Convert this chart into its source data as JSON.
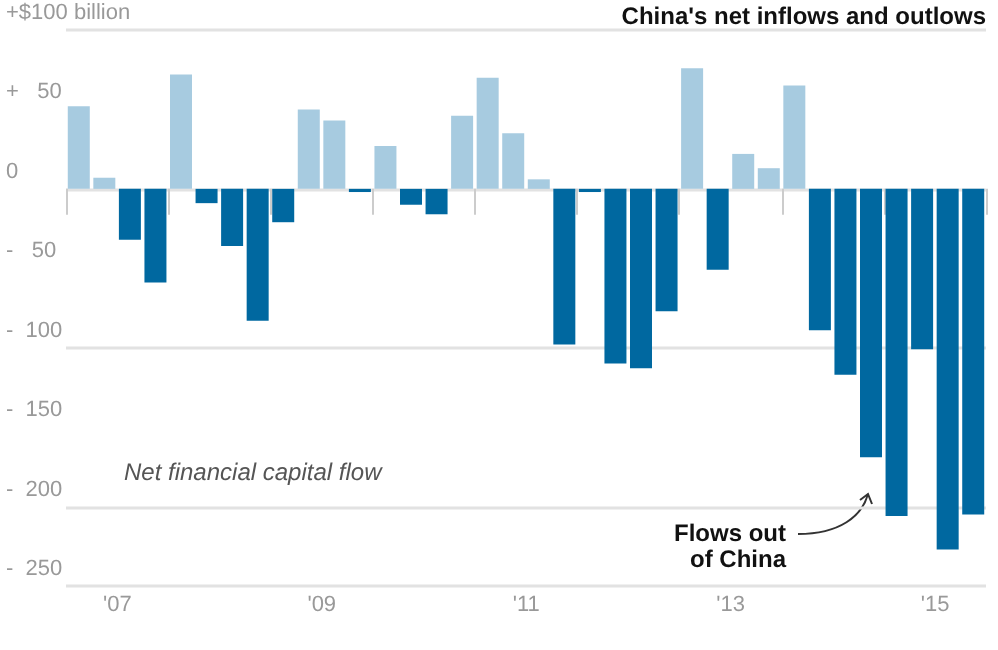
{
  "chart_data": {
    "type": "bar",
    "title": "China's net inflows and outlows",
    "categories": [
      null,
      "'07",
      null,
      null,
      null,
      null,
      null,
      null,
      null,
      "'09",
      null,
      null,
      null,
      null,
      null,
      null,
      null,
      "'11",
      null,
      null,
      null,
      null,
      null,
      null,
      null,
      "'13",
      null,
      null,
      null,
      null,
      null,
      null,
      null,
      "'15",
      null,
      null
    ],
    "values": [
      52,
      7,
      -32,
      -59,
      72,
      -9,
      -36,
      -83,
      -21,
      50,
      43,
      -2,
      27,
      -10,
      -16,
      46,
      70,
      35,
      6,
      -98,
      -2,
      -110,
      -113,
      -77,
      76,
      -51,
      22,
      13,
      65,
      -89,
      -117,
      -169,
      -206,
      -101,
      -227,
      -205
    ],
    "colors": [
      "#a7cbe0",
      "#a7cbe0",
      "#0068a0",
      "#0068a0",
      "#a7cbe0",
      "#0068a0",
      "#0068a0",
      "#0068a0",
      "#0068a0",
      "#a7cbe0",
      "#a7cbe0",
      "#0068a0",
      "#a7cbe0",
      "#0068a0",
      "#0068a0",
      "#a7cbe0",
      "#a7cbe0",
      "#a7cbe0",
      "#a7cbe0",
      "#0068a0",
      "#0068a0",
      "#0068a0",
      "#0068a0",
      "#0068a0",
      "#a7cbe0",
      "#0068a0",
      "#a7cbe0",
      "#a7cbe0",
      "#a7cbe0",
      "#0068a0",
      "#0068a0",
      "#0068a0",
      "#0068a0",
      "#0068a0",
      "#0068a0",
      "#0068a0"
    ],
    "ylim": [
      -250,
      100
    ],
    "yticks": [
      {
        "value": 100,
        "label": "+$100 billion"
      },
      {
        "value": 50,
        "label": "+   50"
      },
      0,
      {
        "value": -50,
        "label": "-   50"
      },
      {
        "value": -100,
        "label": "-  100"
      },
      {
        "value": -150,
        "label": "-  150"
      },
      {
        "value": -200,
        "label": "-  200"
      },
      {
        "value": -250,
        "label": "-  250"
      }
    ],
    "grid": "y",
    "annotations": [
      "Net financial capital flow",
      "Flows out\nof China"
    ]
  }
}
